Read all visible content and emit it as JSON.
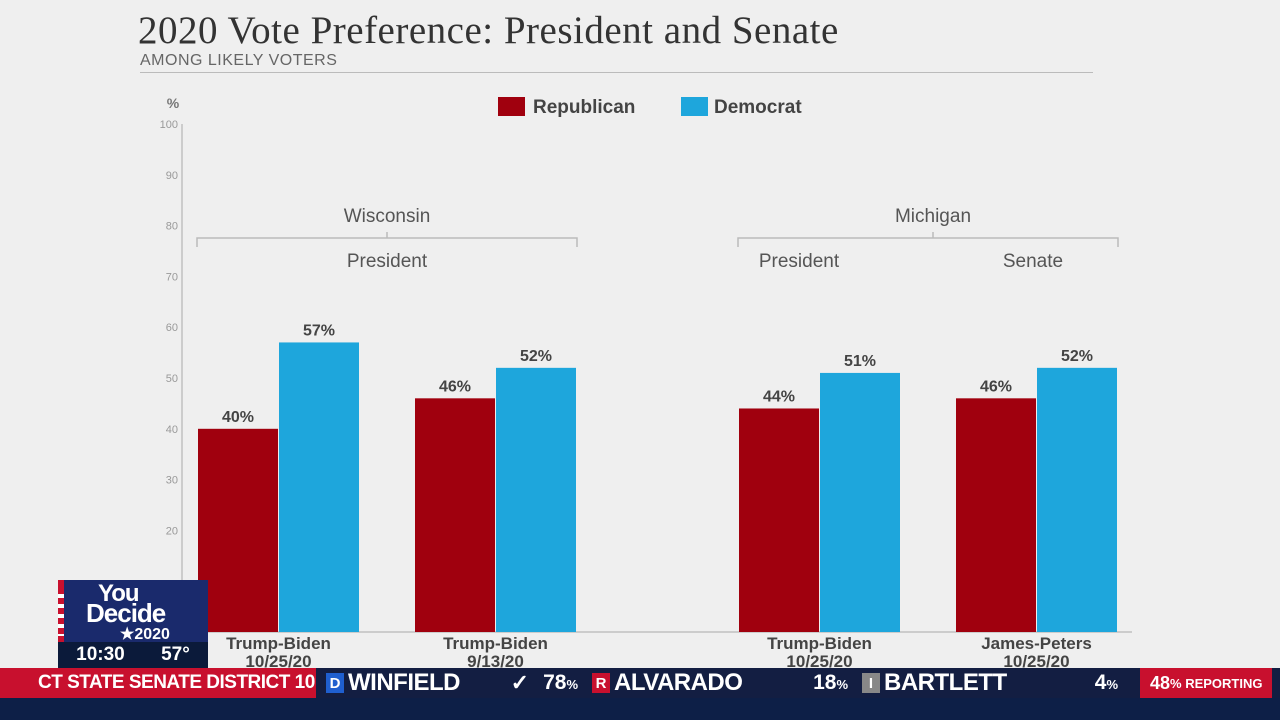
{
  "chart_data": {
    "type": "bar",
    "title": "2020 Vote Preference: President and Senate",
    "subtitle": "AMONG LIKELY VOTERS",
    "ylabel": "%",
    "ylim": [
      0,
      100
    ],
    "yticks": [
      0,
      10,
      20,
      30,
      40,
      50,
      60,
      70,
      80,
      90,
      100
    ],
    "grid": false,
    "legend_position": "top-center",
    "groups": [
      {
        "state": "Wisconsin",
        "races": [
          "President"
        ]
      },
      {
        "state": "Michigan",
        "races": [
          "President",
          "Senate"
        ]
      }
    ],
    "categories": [
      {
        "matchup": "Trump-Biden",
        "date": "10/25/20"
      },
      {
        "matchup": "Trump-Biden",
        "date": "9/13/20"
      },
      {
        "matchup": "Trump-Biden",
        "date": "10/25/20"
      },
      {
        "matchup": "James-Peters",
        "date": "10/25/20"
      }
    ],
    "series": [
      {
        "name": "Republican",
        "color": "#a0000e",
        "values": [
          40,
          46,
          44,
          46
        ],
        "labels": [
          "40%",
          "46%",
          "44%",
          "46%"
        ]
      },
      {
        "name": "Democrat",
        "color": "#1ea6dc",
        "values": [
          57,
          52,
          51,
          52
        ],
        "labels": [
          "57%",
          "52%",
          "51%",
          "52%"
        ]
      }
    ]
  },
  "ticker": {
    "race": "CT STATE SENATE DISTRICT 10",
    "candidates": [
      {
        "party": "D",
        "name": "WINFIELD",
        "pct": "78",
        "winner": true,
        "color": "#1f5fcf"
      },
      {
        "party": "R",
        "name": "ALVARADO",
        "pct": "18",
        "winner": false,
        "color": "#c8102e"
      },
      {
        "party": "I",
        "name": "BARTLETT",
        "pct": "4",
        "winner": false,
        "color": "#888888"
      }
    ],
    "check_icon": "check-icon",
    "pct_sign": "%",
    "reporting_pct": "48",
    "reporting_label": "% REPORTING"
  },
  "logo": {
    "you": "You",
    "decide": "Decide",
    "year": "★2020"
  },
  "clock": {
    "time": "10:30",
    "temp": "57°"
  }
}
